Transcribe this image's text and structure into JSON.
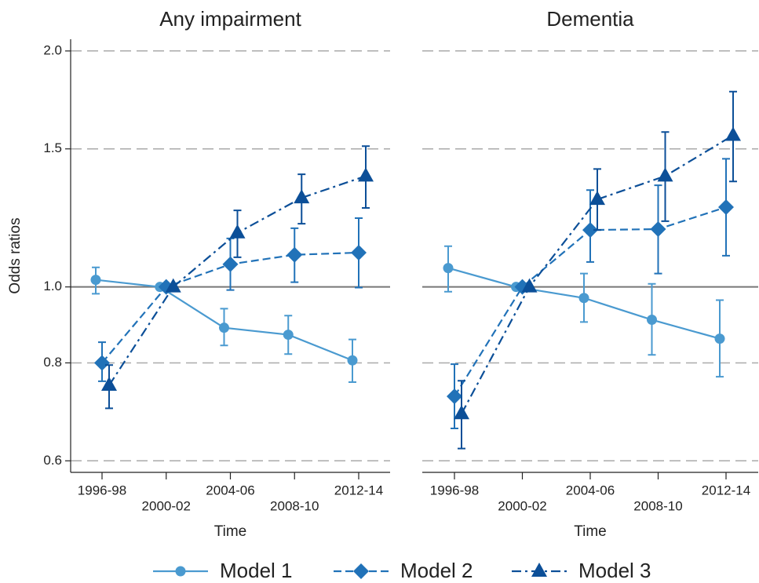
{
  "chart_data": [
    {
      "type": "line",
      "title": "Any impairment",
      "ylabel": "Odds ratios",
      "xlabel": "Time",
      "log_y": true,
      "categories": [
        "1996-98",
        "2000-02",
        "2004-06",
        "2008-10",
        "2012-14"
      ],
      "ylim": [
        0.58,
        2.07
      ],
      "yticks": [
        0.6,
        0.8,
        {
          "value": 1,
          "label": "1.0"
        },
        1.5,
        {
          "value": 2,
          "label": "2.0"
        }
      ],
      "hline": 1,
      "grid": true,
      "series": [
        {
          "name": "Model 1",
          "color": "#4a9ad0",
          "marker": "circle",
          "dash": "solid",
          "values": [
            1.021,
            1.0,
            0.887,
            0.869,
            0.806
          ],
          "lower": [
            0.98,
            null,
            0.842,
            0.821,
            0.756
          ],
          "upper": [
            1.059,
            null,
            0.938,
            0.919,
            0.857
          ]
        },
        {
          "name": "Model 2",
          "color": "#2172b8",
          "marker": "diamond",
          "dash": "dashed",
          "values": [
            0.8,
            1.0,
            1.069,
            1.099,
            1.106
          ],
          "lower": [
            0.758,
            null,
            0.991,
            1.014,
            0.998
          ],
          "upper": [
            0.85,
            null,
            1.153,
            1.188,
            1.224
          ]
        },
        {
          "name": "Model 3",
          "color": "#0c4f98",
          "marker": "triangle",
          "dash": "dashdot",
          "values": [
            0.749,
            1.0,
            1.172,
            1.299,
            1.385
          ],
          "lower": [
            0.7,
            null,
            1.091,
            1.204,
            1.261
          ],
          "upper": [
            0.795,
            null,
            1.252,
            1.392,
            1.512
          ]
        }
      ]
    },
    {
      "type": "line",
      "title": "Dementia",
      "xlabel": "Time",
      "log_y": true,
      "categories": [
        "1996-98",
        "2000-02",
        "2004-06",
        "2008-10",
        "2012-14"
      ],
      "ylim": [
        0.58,
        2.07
      ],
      "yticks": [
        0.6,
        0.8,
        {
          "value": 1,
          "label": "1.0"
        },
        1.5,
        {
          "value": 2,
          "label": "2.0"
        }
      ],
      "hline": 1,
      "grid": true,
      "series": [
        {
          "color": "#4a9ad0",
          "marker": "circle",
          "dash": "solid",
          "values": [
            1.057,
            1.0,
            0.968,
            0.908,
            0.859
          ],
          "lower": [
            0.986,
            null,
            0.902,
            0.819,
            0.768
          ],
          "upper": [
            1.127,
            null,
            1.04,
            1.009,
            0.962
          ]
        },
        {
          "color": "#2172b8",
          "marker": "diamond",
          "dash": "dashed",
          "values": [
            0.725,
            1.0,
            1.182,
            1.185,
            1.264
          ],
          "lower": [
            0.66,
            null,
            1.076,
            1.04,
            1.096
          ],
          "upper": [
            0.797,
            null,
            1.329,
            1.348,
            1.457
          ]
        },
        {
          "color": "#0c4f98",
          "marker": "triangle",
          "dash": "dashdot",
          "values": [
            0.689,
            1.0,
            1.293,
            1.385,
            1.561
          ],
          "lower": [
            0.622,
            null,
            1.182,
            1.213,
            1.363
          ],
          "upper": [
            0.759,
            null,
            1.414,
            1.576,
            1.775
          ]
        }
      ]
    }
  ]
}
